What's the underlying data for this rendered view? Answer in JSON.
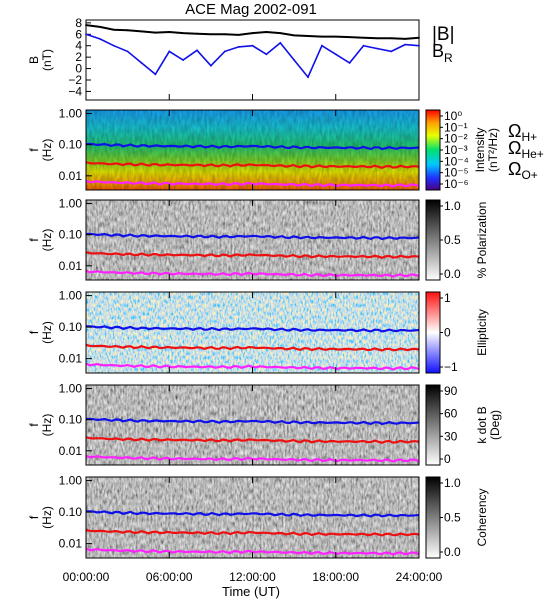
{
  "title": "ACE Mag 2002-091",
  "x_axis": {
    "label": "Time (UT)",
    "ticks": [
      "00:00:00",
      "06:00:00",
      "12:00:00",
      "18:00:00",
      "24:00:00"
    ]
  },
  "colors": {
    "blue": "#1010e8",
    "red": "#ee1010",
    "magenta": "#ff22ff",
    "black": "#000000"
  },
  "chart_data": [
    {
      "type": "line",
      "panel": "magnetic-field",
      "ylabel_top": "B",
      "ylabel_bottom": "(nT)",
      "yticks": [
        "8",
        "6",
        "4",
        "2",
        "0",
        "−2",
        "−4"
      ],
      "ylim": [
        -5.5,
        8.5
      ],
      "x": [
        0,
        1,
        2,
        3,
        4,
        5,
        6,
        7,
        8,
        9,
        10,
        11,
        12,
        13,
        14,
        15,
        16,
        17,
        18,
        19,
        20,
        21,
        22,
        23,
        24
      ],
      "series": [
        {
          "name": "|B|",
          "color": "#000000",
          "values": [
            7.6,
            7.3,
            6.8,
            6.7,
            6.5,
            6.3,
            6.4,
            6.2,
            6.1,
            6.0,
            6.0,
            5.9,
            6.2,
            6.4,
            6.2,
            5.8,
            5.7,
            5.6,
            5.6,
            5.5,
            5.4,
            5.3,
            5.3,
            5.2,
            5.4
          ]
        },
        {
          "name": "B",
          "subscript": "R",
          "color": "#1010e8",
          "values": [
            6.0,
            5.2,
            4.0,
            3.0,
            1.0,
            -1.0,
            3.0,
            1.5,
            3.2,
            0.5,
            3.0,
            3.8,
            4.0,
            2.5,
            4.5,
            1.5,
            -1.5,
            4.0,
            2.5,
            1.0,
            4.0,
            3.5,
            3.0,
            4.2,
            4.0
          ]
        }
      ]
    },
    {
      "type": "heatmap",
      "panel": "power-spectrum",
      "ylabel_top": "f",
      "ylabel_bottom": "(Hz)",
      "yticks": [
        "1.00",
        "0.10",
        "0.01"
      ],
      "colorbar": {
        "label": "Intensity",
        "sublabel": "(nT²/Hz)",
        "ticks": [
          "10⁰",
          "10⁻¹",
          "10⁻²",
          "10⁻³",
          "10⁻⁴",
          "10⁻⁵",
          "10⁻⁶"
        ]
      }
    },
    {
      "type": "heatmap",
      "panel": "polarization",
      "ylabel_top": "f",
      "ylabel_bottom": "(Hz)",
      "yticks": [
        "1.00",
        "0.10",
        "0.01"
      ],
      "colorbar": {
        "label": "% Polarization",
        "ticks": [
          "1.0",
          "0.5",
          "0.0"
        ]
      }
    },
    {
      "type": "heatmap",
      "panel": "ellipticity",
      "ylabel_top": "f",
      "ylabel_bottom": "(Hz)",
      "yticks": [
        "1.00",
        "0.10",
        "0.01"
      ],
      "colorbar": {
        "label": "Ellipticity",
        "ticks": [
          "1",
          "0",
          "−1"
        ]
      }
    },
    {
      "type": "heatmap",
      "panel": "kdotb",
      "ylabel_top": "f",
      "ylabel_bottom": "(Hz)",
      "yticks": [
        "1.00",
        "0.10",
        "0.01"
      ],
      "colorbar": {
        "label": "k dot B",
        "sublabel": "(Deg)",
        "ticks": [
          "90",
          "60",
          "30",
          "0"
        ]
      }
    },
    {
      "type": "heatmap",
      "panel": "coherency",
      "ylabel_top": "f",
      "ylabel_bottom": "(Hz)",
      "yticks": [
        "1.00",
        "0.10",
        "0.01"
      ],
      "colorbar": {
        "label": "Coherency",
        "ticks": [
          "1.0",
          "0.5",
          "0.0"
        ]
      }
    }
  ],
  "gyrofrequencies": {
    "ylim_hz": [
      0.0035,
      1.3
    ],
    "x": [
      0,
      2,
      4,
      6,
      8,
      10,
      12,
      14,
      16,
      18,
      20,
      22,
      24
    ],
    "series": [
      {
        "name": "Ω",
        "subscript": "H+",
        "color": "#1010e8",
        "values": [
          0.105,
          0.097,
          0.092,
          0.09,
          0.088,
          0.086,
          0.09,
          0.084,
          0.081,
          0.08,
          0.079,
          0.078,
          0.079
        ]
      },
      {
        "name": "Ω",
        "subscript": "He+",
        "color": "#ee1010",
        "values": [
          0.026,
          0.024,
          0.023,
          0.0225,
          0.022,
          0.0215,
          0.0225,
          0.021,
          0.0203,
          0.02,
          0.0198,
          0.0195,
          0.0198
        ]
      },
      {
        "name": "Ω",
        "subscript": "O+",
        "color": "#ff22ff",
        "values": [
          0.0066,
          0.0061,
          0.0058,
          0.0056,
          0.0055,
          0.0054,
          0.0056,
          0.0053,
          0.0051,
          0.005,
          0.005,
          0.0049,
          0.005
        ]
      }
    ]
  }
}
